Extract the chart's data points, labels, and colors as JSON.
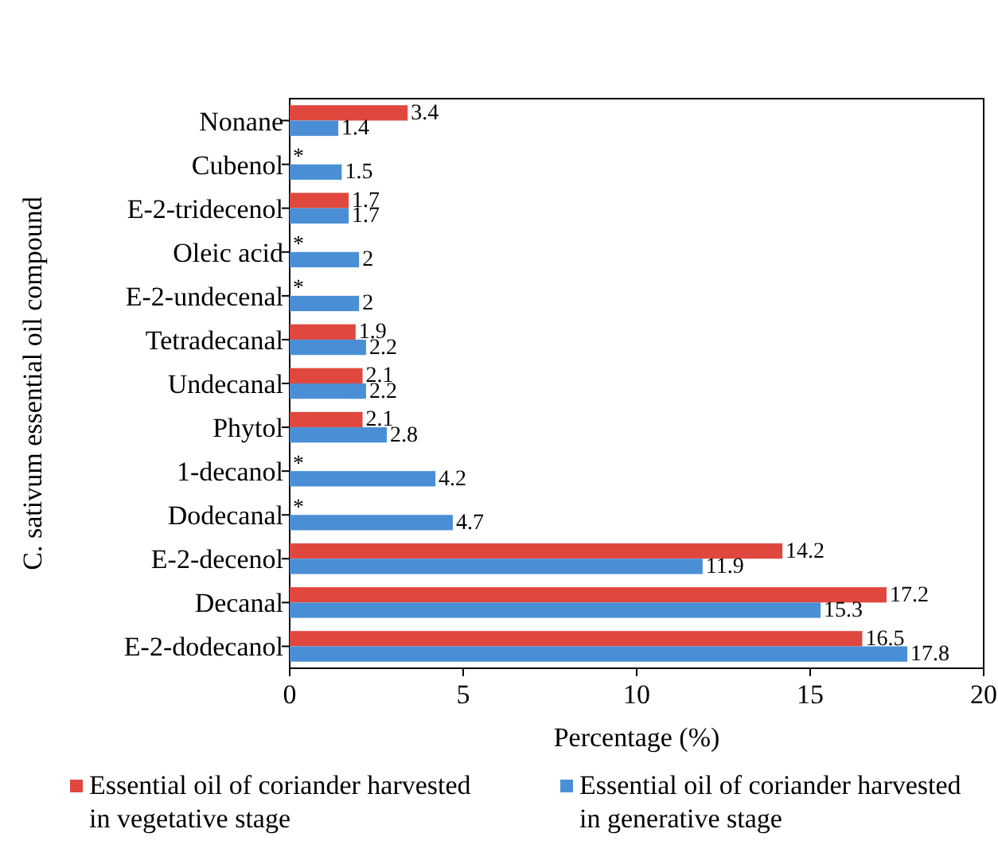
{
  "chart_data": {
    "type": "bar",
    "orientation": "horizontal",
    "xlabel": "Percentage (%)",
    "ylabel": "C. sativum essential oil compound",
    "categories": [
      "Nonane",
      "Cubenol",
      "E-2-tridecenol",
      "Oleic acid",
      "E-2-undecenal",
      "Tetradecanal",
      "Undecanal",
      "Phytol",
      "1-decanol",
      "Dodecanal",
      "E-2-decenol",
      "Decanal",
      "E-2-dodecanol"
    ],
    "series": [
      {
        "name": "Essential oil of coriander harvested in vegetative stage",
        "color": "#e0473e",
        "values": [
          3.4,
          null,
          1.7,
          null,
          null,
          1.9,
          2.1,
          2.1,
          null,
          null,
          14.2,
          17.2,
          16.5
        ],
        "value_labels": [
          "3.4",
          "*",
          "1.7",
          "*",
          "*",
          "1.9",
          "2.1",
          "2.1",
          "*",
          "*",
          "14.2",
          "17.2",
          "16.5"
        ]
      },
      {
        "name": "Essential oil of coriander harvested in generative stage",
        "color": "#4a8fd6",
        "values": [
          1.4,
          1.5,
          1.7,
          2,
          2,
          2.2,
          2.2,
          2.8,
          4.2,
          4.7,
          11.9,
          15.3,
          17.8
        ],
        "value_labels": [
          "1.4",
          "1.5",
          "1.7",
          "2",
          "2",
          "2.2",
          "2.2",
          "2.8",
          "4.2",
          "4.7",
          "11.9",
          "15.3",
          "17.8"
        ]
      }
    ],
    "xlim": [
      0,
      20
    ],
    "xticks": [
      0,
      5,
      10,
      15,
      20
    ],
    "grid": false,
    "legend": "bottom"
  }
}
